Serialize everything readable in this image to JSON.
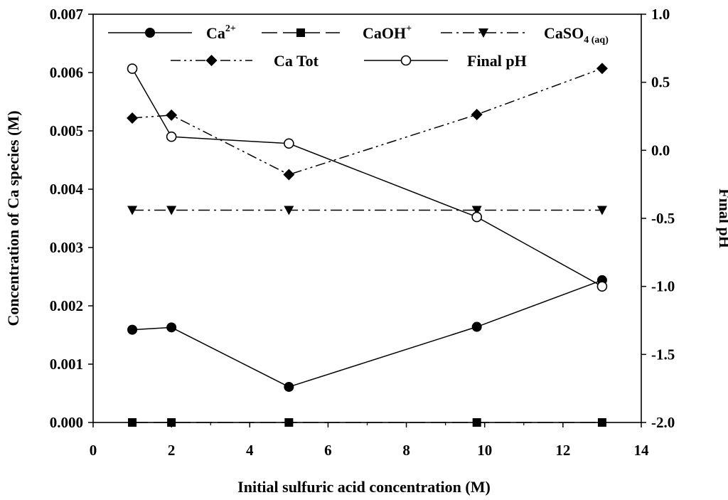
{
  "chart_data": {
    "type": "line",
    "xlabel": "Initial sulfuric acid concentration (M)",
    "ylabel": "Concentration of Ca species (M)",
    "y2label": "Final pH",
    "xlim": [
      0,
      14
    ],
    "ylim": [
      0,
      0.007
    ],
    "y2lim": [
      -2.0,
      1.0
    ],
    "x_ticks": [
      "0",
      "2",
      "4",
      "6",
      "8",
      "10",
      "12",
      "14"
    ],
    "y_ticks": [
      "0.000",
      "0.001",
      "0.002",
      "0.003",
      "0.004",
      "0.005",
      "0.006",
      "0.007"
    ],
    "y2_ticks": [
      "-2.0",
      "-1.5",
      "-1.0",
      "-0.5",
      "0.0",
      "0.5",
      "1.0"
    ],
    "x": [
      1,
      2,
      5,
      9.8,
      13
    ],
    "series": [
      {
        "name_base": "Ca",
        "name_sup": "2+",
        "name_sub": "",
        "axis": "left",
        "marker": "circle-filled",
        "dash": "solid",
        "values": [
          0.00159,
          0.00163,
          0.00061,
          0.00164,
          0.00244
        ]
      },
      {
        "name_base": "CaOH",
        "name_sup": "+",
        "name_sub": "",
        "axis": "left",
        "marker": "square-filled",
        "dash": "long-dash",
        "values": [
          0.0,
          0.0,
          0.0,
          0.0,
          0.0
        ]
      },
      {
        "name_base": "CaSO",
        "name_sup": "",
        "name_sub": "4 (aq)",
        "axis": "left",
        "marker": "triangle-down-filled",
        "dash": "dash-dot",
        "values": [
          0.00364,
          0.00364,
          0.00364,
          0.00364,
          0.00364
        ]
      },
      {
        "name_base": "Ca Tot",
        "name_sup": "",
        "name_sub": "",
        "axis": "left",
        "marker": "diamond-filled",
        "dash": "dash-dot-dot",
        "values": [
          0.00522,
          0.00527,
          0.00425,
          0.00528,
          0.00607
        ]
      },
      {
        "name_base": "Final pH",
        "name_sup": "",
        "name_sub": "",
        "axis": "right",
        "marker": "circle-open",
        "dash": "solid",
        "values": [
          0.6,
          0.1,
          0.05,
          -0.49,
          -1.0
        ]
      }
    ],
    "legend_position": "top",
    "grid": false
  }
}
